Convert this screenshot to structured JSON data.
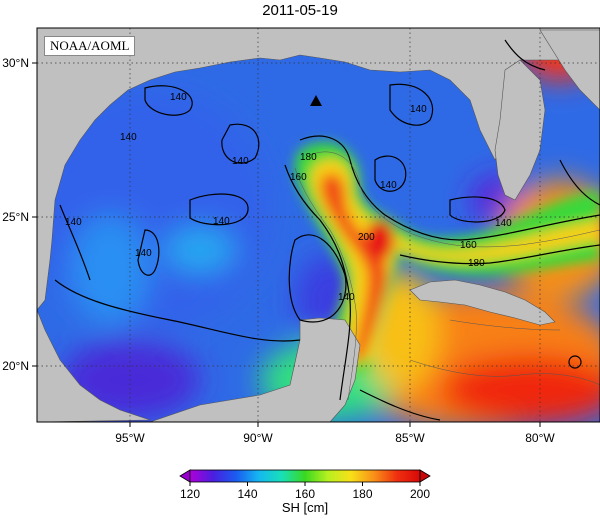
{
  "title": "2011-05-19",
  "credit": "NOAA/AOML",
  "axes": {
    "lat_ticks": [
      {
        "value": 30,
        "label": "30°N"
      },
      {
        "value": 25,
        "label": "25°N"
      },
      {
        "value": 20,
        "label": "20°N"
      }
    ],
    "lon_ticks": [
      {
        "value": -95,
        "label": "95°W"
      },
      {
        "value": -90,
        "label": "90°W"
      },
      {
        "value": -85,
        "label": "85°W"
      },
      {
        "value": -80,
        "label": "80°W"
      }
    ],
    "lon_range": [
      -98,
      -78
    ],
    "lat_range": [
      18,
      31
    ]
  },
  "contour_labels": [
    "140",
    "140",
    "140",
    "140",
    "140",
    "140",
    "140",
    "140",
    "140",
    "160",
    "160",
    "180",
    "180",
    "200",
    "140"
  ],
  "colorbar": {
    "label": "SH [cm]",
    "ticks": [
      "120",
      "140",
      "160",
      "180",
      "200"
    ],
    "min": 120,
    "max": 200,
    "colors": [
      "#b000d8",
      "#4a1ee0",
      "#1a5cf0",
      "#15b8f0",
      "#18e0b8",
      "#3ad820",
      "#b8f020",
      "#f8e018",
      "#f89018",
      "#f03010",
      "#d80808"
    ]
  },
  "marker": {
    "type": "triangle",
    "lon": -88.3,
    "lat": 28.7
  }
}
